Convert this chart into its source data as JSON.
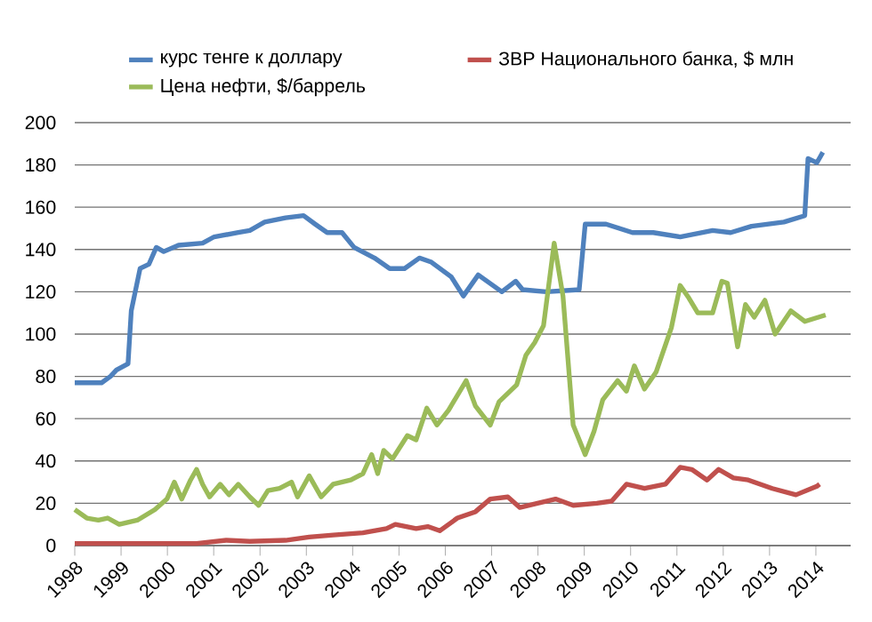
{
  "chart_data": {
    "type": "line",
    "legend": "top",
    "grid": "y",
    "xlim": [
      1998,
      2014.75
    ],
    "ylim": [
      0,
      200
    ],
    "xticks": [
      1998,
      1999,
      2000,
      2001,
      2002,
      2003,
      2004,
      2005,
      2006,
      2007,
      2008,
      2009,
      2010,
      2011,
      2012,
      2013,
      2014
    ],
    "yticks": [
      0,
      20,
      40,
      60,
      80,
      100,
      120,
      140,
      160,
      180,
      200
    ],
    "series": [
      {
        "name": "курс тенге к доллару",
        "color": "#4f81bd",
        "x": [
          1998.0,
          1998.58,
          1998.77,
          1998.9,
          1999.15,
          1999.22,
          1999.41,
          1999.6,
          1999.76,
          1999.92,
          2000.24,
          2000.76,
          2001.01,
          2001.53,
          2001.78,
          2002.1,
          2002.55,
          2002.94,
          2003.19,
          2003.45,
          2003.77,
          2004.03,
          2004.47,
          2004.8,
          2005.12,
          2005.44,
          2005.7,
          2006.13,
          2006.39,
          2006.71,
          2007.22,
          2007.52,
          2007.67,
          2008.18,
          2008.89,
          2009.02,
          2009.47,
          2010.04,
          2010.49,
          2011.07,
          2011.77,
          2012.16,
          2012.61,
          2013.31,
          2013.76,
          2013.83,
          2014.02,
          2014.15
        ],
        "values": [
          77,
          77,
          80,
          83,
          86,
          111,
          131,
          133,
          141,
          139,
          142,
          143,
          146,
          148,
          149,
          153,
          155,
          156,
          152,
          148,
          148,
          141,
          136,
          131,
          131,
          136,
          134,
          127,
          118,
          128,
          120,
          125,
          121,
          120,
          121,
          152,
          152,
          148,
          148,
          146,
          149,
          148,
          151,
          153,
          156,
          183,
          181,
          186
        ]
      },
      {
        "name": "ЗВР Национального банка, $ млн",
        "color": "#c0504d",
        "x": [
          1998.0,
          1999.35,
          2000.63,
          2001.27,
          2001.78,
          2002.55,
          2003.06,
          2003.58,
          2004.22,
          2004.73,
          2004.92,
          2005.37,
          2005.62,
          2005.88,
          2006.26,
          2006.65,
          2006.97,
          2007.35,
          2007.61,
          2007.99,
          2008.38,
          2008.76,
          2009.27,
          2009.59,
          2009.91,
          2010.3,
          2010.75,
          2011.07,
          2011.32,
          2011.65,
          2011.9,
          2012.22,
          2012.54,
          2013.06,
          2013.57,
          2014.02,
          2014.08
        ],
        "values": [
          1,
          1,
          1,
          2.5,
          2,
          2.5,
          4,
          5,
          6,
          8,
          10,
          8,
          9,
          7,
          13,
          16,
          22,
          23,
          18,
          20,
          22,
          19,
          20,
          21,
          29,
          27,
          29,
          37,
          36,
          31,
          36,
          32,
          31,
          27,
          24,
          28,
          29
        ]
      },
      {
        "name": "Цена нефти, $/баррель",
        "color": "#9bbb59",
        "x": [
          1998.0,
          1998.26,
          1998.51,
          1998.71,
          1998.96,
          1999.35,
          1999.73,
          1999.99,
          2000.15,
          2000.31,
          2000.5,
          2000.63,
          2000.76,
          2000.91,
          2001.14,
          2001.33,
          2001.53,
          2001.78,
          2001.97,
          2002.17,
          2002.42,
          2002.68,
          2002.81,
          2003.06,
          2003.32,
          2003.58,
          2003.96,
          2004.22,
          2004.41,
          2004.54,
          2004.67,
          2004.86,
          2005.18,
          2005.37,
          2005.6,
          2005.82,
          2006.07,
          2006.45,
          2006.65,
          2006.97,
          2007.16,
          2007.54,
          2007.74,
          2007.93,
          2008.12,
          2008.35,
          2008.54,
          2008.76,
          2009.02,
          2009.21,
          2009.4,
          2009.72,
          2009.91,
          2010.08,
          2010.3,
          2010.55,
          2010.88,
          2011.07,
          2011.26,
          2011.45,
          2011.77,
          2011.97,
          2012.09,
          2012.31,
          2012.48,
          2012.67,
          2012.9,
          2013.12,
          2013.46,
          2013.76,
          2014.21
        ],
        "values": [
          17,
          13,
          12,
          13,
          10,
          12,
          17,
          22,
          30,
          22,
          31,
          36,
          29,
          23,
          29,
          24,
          29,
          23,
          19,
          26,
          27,
          30,
          23,
          33,
          23,
          29,
          31,
          34,
          43,
          34,
          45,
          41,
          52,
          50,
          65,
          57,
          64,
          78,
          66,
          57,
          68,
          76,
          90,
          96,
          104,
          143,
          118,
          57,
          43,
          54,
          69,
          78,
          73,
          85,
          74,
          82,
          103,
          123,
          117,
          110,
          110,
          125,
          124,
          94,
          114,
          108,
          116,
          100,
          111,
          106,
          109
        ]
      }
    ]
  }
}
